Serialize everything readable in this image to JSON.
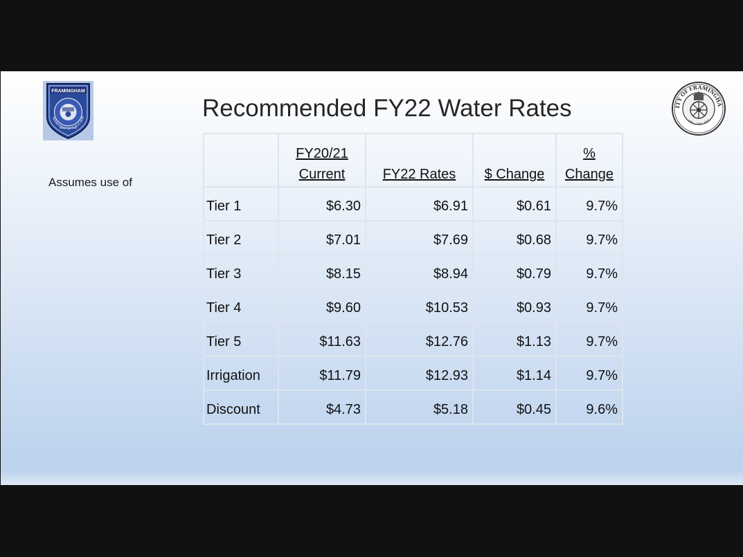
{
  "slide": {
    "title": "Recommended FY22 Water Rates",
    "side_note": "Assumes use of",
    "logo_left": {
      "icon": "framingham-public-works-badge-icon",
      "text_top": "FRAMINGHAM",
      "text_ring": "DEPARTMENT OF PUBLIC WORKS",
      "colors": {
        "badge": "#2b4a9c",
        "background": "#b6c8e6"
      }
    },
    "logo_right": {
      "icon": "city-of-framingham-seal-icon",
      "text_ring": "CITY OF FRAMINGHAM",
      "text_years": "1653 · 1700 · 2018"
    }
  },
  "table": {
    "headers": [
      {
        "line1": "",
        "line2": ""
      },
      {
        "line1": "FY20/21",
        "line2": "Current"
      },
      {
        "line1": "",
        "line2": "FY22 Rates"
      },
      {
        "line1": "",
        "line2": "$ Change"
      },
      {
        "line1": "%",
        "line2": "Change"
      }
    ],
    "rows": [
      {
        "label": "Tier 1",
        "current": "$6.30",
        "fy22": "$6.91",
        "change": "$0.61",
        "pct": "9.7%"
      },
      {
        "label": "Tier 2",
        "current": "$7.01",
        "fy22": "$7.69",
        "change": "$0.68",
        "pct": "9.7%"
      },
      {
        "label": "Tier 3",
        "current": "$8.15",
        "fy22": "$8.94",
        "change": "$0.79",
        "pct": "9.7%"
      },
      {
        "label": "Tier 4",
        "current": "$9.60",
        "fy22": "$10.53",
        "change": "$0.93",
        "pct": "9.7%"
      },
      {
        "label": "Tier 5",
        "current": "$11.63",
        "fy22": "$12.76",
        "change": "$1.13",
        "pct": "9.7%"
      },
      {
        "label": "Irrigation",
        "current": "$11.79",
        "fy22": "$12.93",
        "change": "$1.14",
        "pct": "9.7%"
      },
      {
        "label": "Discount",
        "current": "$4.73",
        "fy22": "$5.18",
        "change": "$0.45",
        "pct": "9.6%"
      }
    ]
  }
}
